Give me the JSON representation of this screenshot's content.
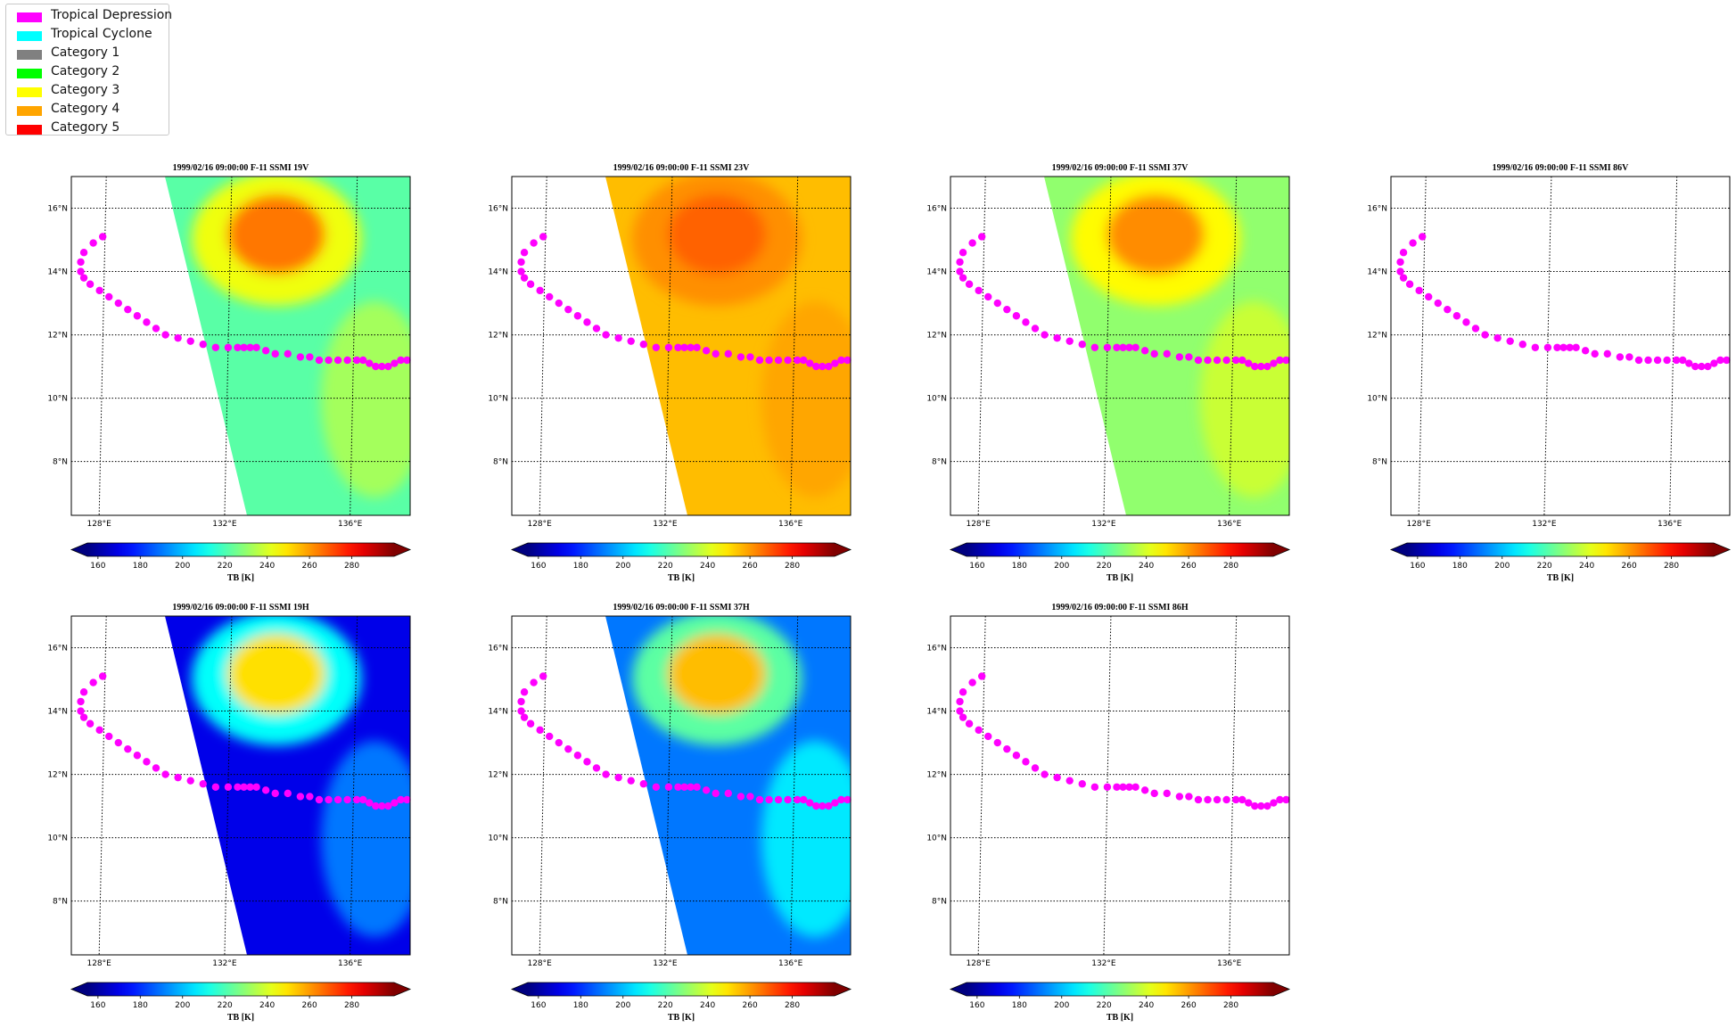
{
  "legend": {
    "items": [
      {
        "label": "Tropical Depression",
        "color": "#ff00ff"
      },
      {
        "label": "Tropical Cyclone",
        "color": "#00ffff"
      },
      {
        "label": "Category 1",
        "color": "#808080"
      },
      {
        "label": "Category 2",
        "color": "#00ff00"
      },
      {
        "label": "Category 3",
        "color": "#ffff00"
      },
      {
        "label": "Category 4",
        "color": "#ffa500"
      },
      {
        "label": "Category 5",
        "color": "#ff0000"
      }
    ]
  },
  "chart_data": {
    "type": "scatter",
    "track": {
      "color": "#ff00ff",
      "lon": [
        128.0,
        127.7,
        127.4,
        127.3,
        127.3,
        127.4,
        127.6,
        127.9,
        128.2,
        128.5,
        128.8,
        129.1,
        129.4,
        129.7,
        130.0,
        130.4,
        130.8,
        131.2,
        131.6,
        132.0,
        132.3,
        132.5,
        132.7,
        132.9,
        133.2,
        133.5,
        133.9,
        134.3,
        134.6,
        134.9,
        135.2,
        135.5,
        135.8,
        136.1,
        136.3,
        136.5,
        136.7,
        136.9,
        137.1,
        137.3,
        137.5,
        137.7
      ],
      "lat": [
        15.1,
        14.9,
        14.6,
        14.3,
        14.0,
        13.8,
        13.6,
        13.4,
        13.2,
        13.0,
        12.8,
        12.6,
        12.4,
        12.2,
        12.0,
        11.9,
        11.8,
        11.7,
        11.6,
        11.6,
        11.6,
        11.6,
        11.6,
        11.6,
        11.5,
        11.4,
        11.4,
        11.3,
        11.3,
        11.2,
        11.2,
        11.2,
        11.2,
        11.2,
        11.2,
        11.1,
        11.0,
        11.0,
        11.0,
        11.1,
        11.2,
        11.2
      ]
    },
    "lon_ticks": [
      "128°E",
      "132°E",
      "136°E"
    ],
    "lon_tick_values": [
      128,
      132,
      136
    ],
    "lat_ticks": [
      "16°N",
      "14°N",
      "12°N",
      "10°N",
      "8°N"
    ],
    "lat_tick_values": [
      16,
      14,
      12,
      10,
      8
    ],
    "lon_range": [
      127.0,
      137.8
    ],
    "lat_range": [
      6.3,
      17.0
    ],
    "colorbar": {
      "label": "TB [K]",
      "ticks": [
        "160",
        "180",
        "200",
        "220",
        "240",
        "260",
        "280"
      ],
      "tick_values": [
        160,
        180,
        200,
        220,
        240,
        260,
        280
      ],
      "range": [
        155,
        300
      ],
      "cmap": "jet",
      "extend": "both"
    },
    "panels": [
      {
        "title": "1999/02/16 09:00:00  F-11 SSMI 19V",
        "data": true,
        "base_tb": 222,
        "storm_tb": 265
      },
      {
        "title": "1999/02/16 09:00:00  F-11 SSMI 23V",
        "data": true,
        "base_tb": 255,
        "storm_tb": 268
      },
      {
        "title": "1999/02/16 09:00:00  F-11 SSMI 37V",
        "data": true,
        "base_tb": 230,
        "storm_tb": 262
      },
      {
        "title": "1999/02/16 09:00:00  F-11 SSMI 86V",
        "data": false
      },
      {
        "title": "1999/02/16 09:00:00  F-11 SSMI 19H",
        "data": true,
        "base_tb": 170,
        "storm_tb": 250
      },
      {
        "title": "1999/02/16 09:00:00  F-11 SSMI 37H",
        "data": true,
        "base_tb": 190,
        "storm_tb": 255
      },
      {
        "title": "1999/02/16 09:00:00  F-11 SSMI 86H",
        "data": false
      }
    ]
  }
}
